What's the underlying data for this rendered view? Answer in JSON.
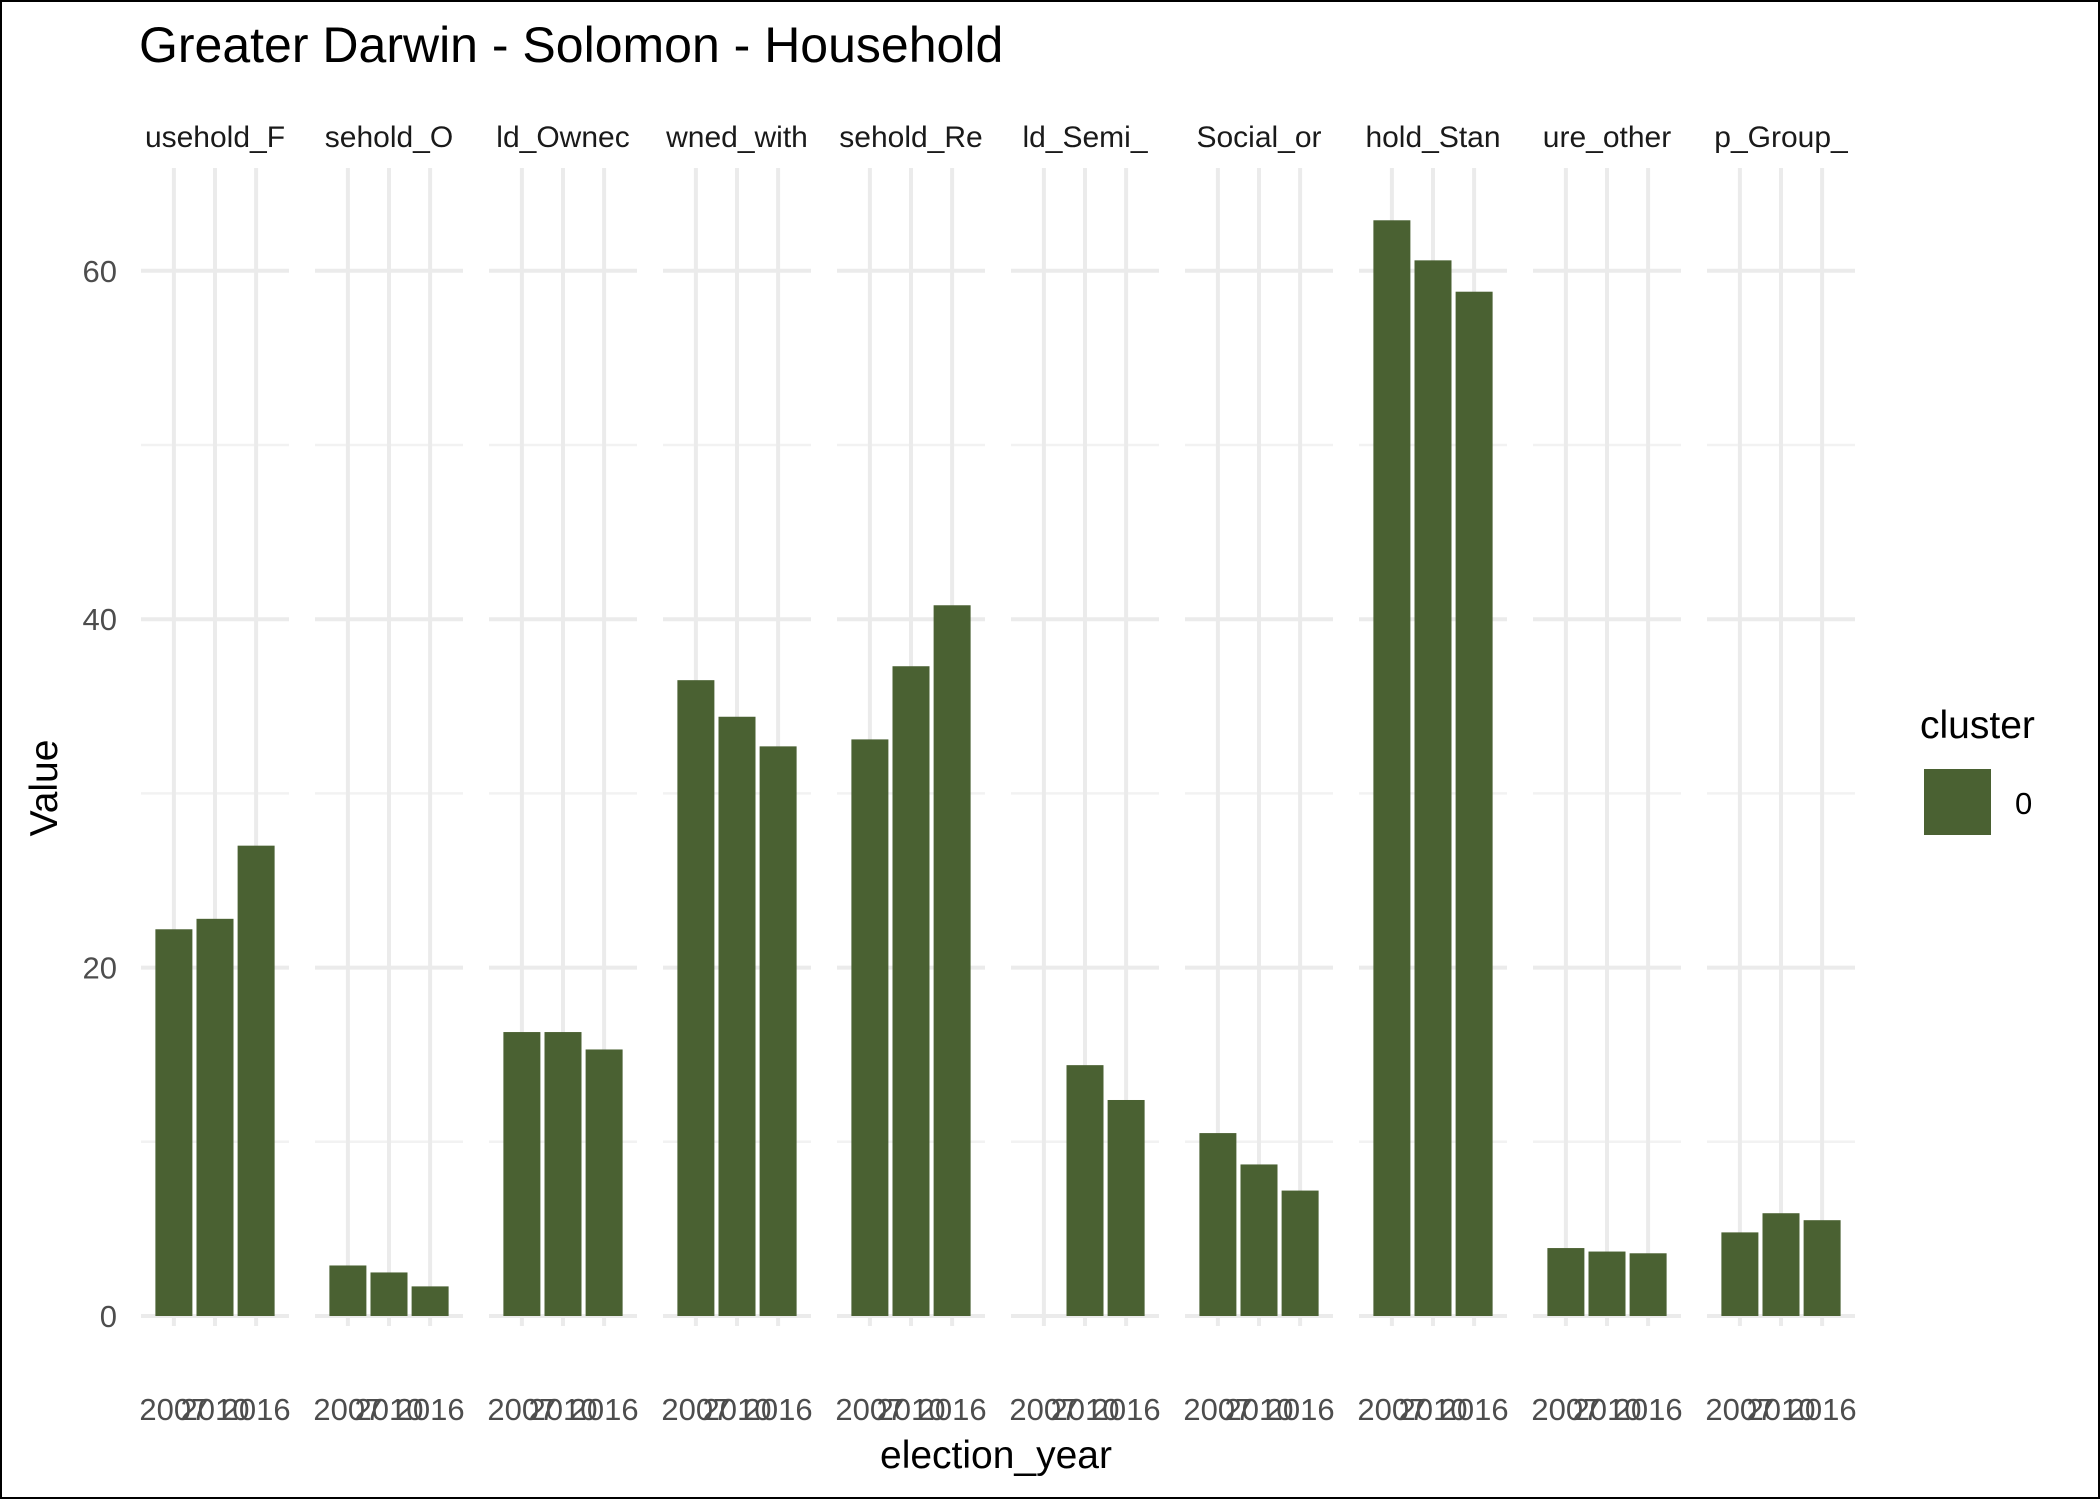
{
  "chart_data": {
    "type": "bar",
    "title": "Greater Darwin - Solomon - Household",
    "xlabel": "election_year",
    "ylabel": "Value",
    "ylim": [
      0,
      66
    ],
    "y_ticks": [
      "0",
      "20",
      "40",
      "60"
    ],
    "grid": true,
    "legend": {
      "title": "cluster",
      "placement": "right",
      "entries": [
        {
          "label": "0",
          "color": "#4a6132"
        }
      ]
    },
    "colors": {
      "bar": "#4a6132",
      "grid": "#ebebeb"
    },
    "x": [
      "2007",
      "2010",
      "2016"
    ],
    "panels": [
      {
        "label": "usehold_F",
        "values": [
          22.2,
          22.8,
          27.0
        ]
      },
      {
        "label": "sehold_O",
        "values": [
          2.9,
          2.5,
          1.7
        ]
      },
      {
        "label": "ld_Ownec",
        "values": [
          16.3,
          16.3,
          15.3
        ]
      },
      {
        "label": "wned_with",
        "values": [
          36.5,
          34.4,
          32.7
        ]
      },
      {
        "label": "sehold_Re",
        "values": [
          33.1,
          37.3,
          40.8
        ]
      },
      {
        "label": "ld_Semi_",
        "values": [
          null,
          14.4,
          12.4
        ]
      },
      {
        "label": "Social_or",
        "values": [
          10.5,
          8.7,
          7.2
        ]
      },
      {
        "label": "hold_Stan",
        "values": [
          62.9,
          60.6,
          58.8
        ]
      },
      {
        "label": "ure_other",
        "values": [
          3.9,
          3.7,
          3.6
        ]
      },
      {
        "label": "p_Group_",
        "values": [
          4.8,
          5.9,
          5.5
        ]
      }
    ]
  }
}
